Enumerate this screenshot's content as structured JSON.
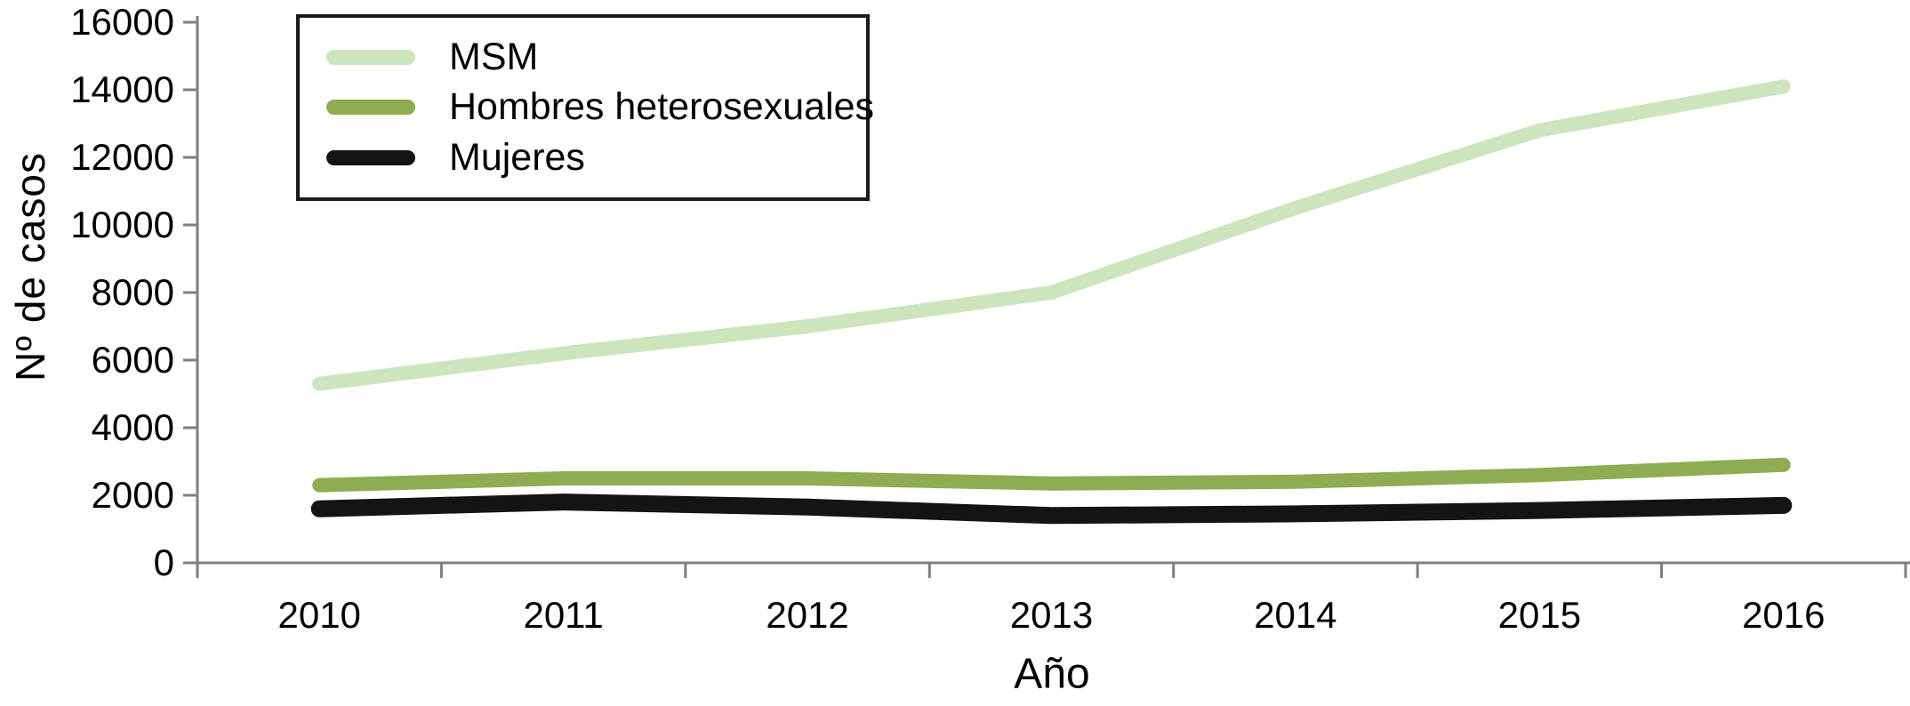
{
  "chart_data": {
    "type": "line",
    "title": "",
    "xlabel": "Año",
    "ylabel": "Nº de casos",
    "categories": [
      "2010",
      "2011",
      "2012",
      "2013",
      "2014",
      "2015",
      "2016"
    ],
    "series": [
      {
        "name": "MSM",
        "color": "#cde5bd",
        "stroke_width": 16,
        "values": [
          5300,
          6200,
          7000,
          8000,
          10500,
          12800,
          14100
        ]
      },
      {
        "name": "Hombres heterosexuales",
        "color": "#8ead52",
        "stroke_width": 16,
        "values": [
          2300,
          2500,
          2500,
          2350,
          2400,
          2600,
          2900
        ]
      },
      {
        "name": "Mujeres",
        "color": "#141414",
        "stroke_width": 19,
        "values": [
          1600,
          1800,
          1650,
          1400,
          1450,
          1550,
          1700
        ]
      }
    ],
    "ylim": [
      0,
      16000
    ],
    "ytick_step": 2000,
    "yticks": [
      "0",
      "2000",
      "4000",
      "6000",
      "8000",
      "10000",
      "12000",
      "14000",
      "16000"
    ],
    "legend_position": "top-left",
    "grid": false
  },
  "style": {
    "axis_color": "#7f7f7f",
    "text_color": "#000000",
    "legend_border_color": "#1a1a1a",
    "background": "#ffffff"
  }
}
